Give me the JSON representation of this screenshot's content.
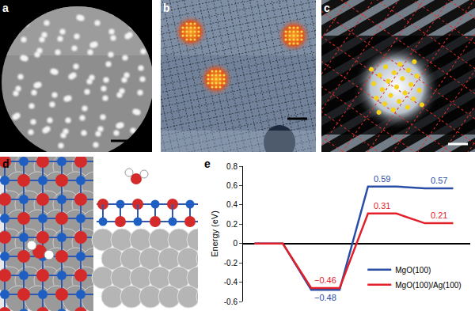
{
  "panels": [
    "a",
    "b",
    "c",
    "d",
    "e"
  ],
  "chart_data": {
    "type": "line",
    "y_label": "Energy (eV)",
    "categories": [
      null,
      null,
      null,
      null
    ],
    "series": [
      {
        "name": "MgO(100)",
        "color": "#2a4ea6",
        "values": [
          0,
          -0.48,
          0.59,
          0.57
        ],
        "value_labels": [
          null,
          "−0.48",
          "0.59",
          "0.57"
        ]
      },
      {
        "name": "MgO(100)/Ag(100)",
        "color": "#e3202a",
        "values": [
          0,
          -0.46,
          0.31,
          0.21
        ],
        "value_labels": [
          null,
          "−0.46",
          "0.31",
          "0.21"
        ]
      }
    ],
    "ylim": [
      -0.6,
      0.8
    ],
    "yticks": [
      -0.6,
      -0.4,
      -0.2,
      0,
      0.2,
      0.4,
      0.6,
      0.8
    ],
    "legend": "lower right",
    "data_labels": true,
    "tick_labels": "y"
  }
}
